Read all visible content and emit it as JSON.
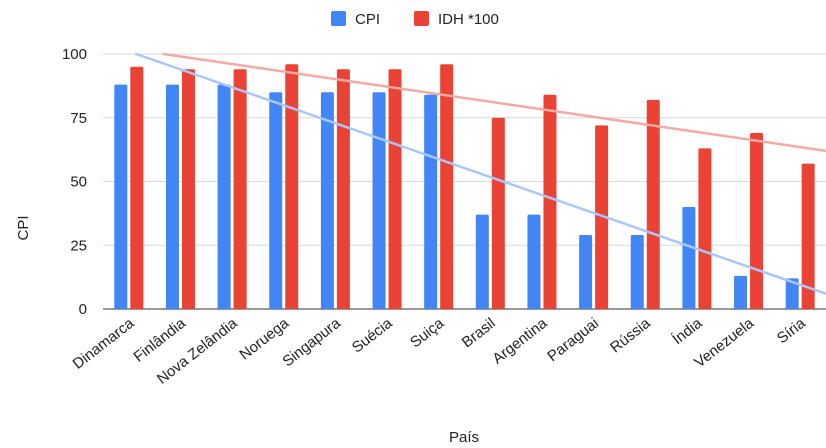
{
  "chart_data": {
    "type": "bar",
    "title": "",
    "xlabel": "País",
    "ylabel": "CPI",
    "ylim": [
      0,
      100
    ],
    "yticks": [
      0,
      25,
      50,
      75,
      100
    ],
    "grid": true,
    "legend": "top",
    "categories": [
      "Dinamarca",
      "Finlândia",
      "Nova Zelândia",
      "Noruega",
      "Singapura",
      "Suécia",
      "Suiça",
      "Brasil",
      "Argentina",
      "Paraguai",
      "Rússia",
      "Índia",
      "Venezuela",
      "Síria"
    ],
    "series": [
      {
        "name": "CPI",
        "color": "#4285f4",
        "values": [
          88,
          88,
          88,
          85,
          85,
          85,
          84,
          37,
          37,
          29,
          29,
          40,
          13,
          12
        ]
      },
      {
        "name": "IDH *100",
        "color": "#ea4335",
        "values": [
          95,
          94,
          94,
          96,
          94,
          94,
          96,
          75,
          84,
          72,
          82,
          63,
          69,
          57
        ]
      }
    ],
    "trendlines": [
      {
        "series": "CPI",
        "color": "#a9c7fa",
        "start": 101,
        "end": 9.5
      },
      {
        "series": "IDH *100",
        "color": "#f4aaa3",
        "start": 102,
        "end": 63.5
      }
    ]
  }
}
